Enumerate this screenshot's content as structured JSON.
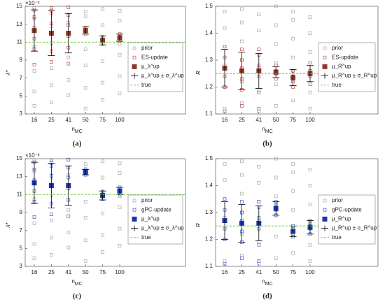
{
  "chart_data": [
    {
      "type": "scatter",
      "panel_label": "(a)",
      "y_label": "λ*",
      "y_multiplier": "×10⁻³",
      "x_label": "nMC",
      "categories": [
        "16",
        "25",
        "41",
        "50",
        "75",
        "100"
      ],
      "ylim": [
        3,
        15
      ],
      "yticks": [
        3,
        5,
        7,
        9,
        11,
        13,
        15
      ],
      "legend": "right",
      "series": [
        {
          "name": "prior",
          "role": "prior",
          "color": "#a6a6a6",
          "x": [
            "16",
            "16",
            "16",
            "16",
            "16",
            "16",
            "25",
            "25",
            "25",
            "25",
            "25",
            "25",
            "41",
            "41",
            "41",
            "41",
            "41",
            "41",
            "50",
            "50",
            "50",
            "50",
            "50",
            "50",
            "75",
            "75",
            "75",
            "75",
            "75",
            "75",
            "100",
            "100",
            "100",
            "100",
            "100",
            "100"
          ],
          "values": [
            3.9,
            5.5,
            7.8,
            10.5,
            13.6,
            14.8,
            4.3,
            6.2,
            8.1,
            10.9,
            12.8,
            14.6,
            5.1,
            6.8,
            9.3,
            11.7,
            13.2,
            14.9,
            3.6,
            5.9,
            8.4,
            10.2,
            13.9,
            14.4,
            4.6,
            6.5,
            8.9,
            11.4,
            12.9,
            14.7,
            5.3,
            7.2,
            9.6,
            10.8,
            13.4,
            14.5
          ]
        },
        {
          "name": "ES-update",
          "role": "update",
          "color": "#c0504d",
          "x": [
            "16",
            "16",
            "16",
            "16",
            "16",
            "16",
            "25",
            "25",
            "25",
            "25",
            "25",
            "25",
            "41",
            "41",
            "41",
            "41",
            "41",
            "41",
            "50",
            "50",
            "50",
            "50",
            "75",
            "75",
            "75",
            "75",
            "100",
            "100",
            "100",
            "100"
          ],
          "values": [
            8.5,
            10.2,
            11.4,
            12.6,
            13.8,
            14.6,
            8.8,
            10.0,
            11.9,
            13.1,
            14.2,
            14.8,
            8.6,
            10.4,
            11.7,
            12.9,
            14.0,
            14.9,
            11.9,
            12.2,
            12.4,
            12.6,
            10.8,
            11.1,
            11.3,
            11.6,
            11.1,
            11.4,
            11.6,
            11.9
          ]
        },
        {
          "name": "μ_λ^up",
          "role": "mean",
          "color": "#8b3a2a",
          "values": [
            12.3,
            12.0,
            12.0,
            12.3,
            11.2,
            11.5
          ]
        },
        {
          "name": "μ_λ^up ± σ_λ^up",
          "role": "error",
          "color": "#000000",
          "values": [
            12.3,
            12.0,
            12.0,
            12.3,
            11.2,
            11.5
          ],
          "errors": [
            2.3,
            2.5,
            2.2,
            0.4,
            0.5,
            0.4
          ]
        },
        {
          "name": "true",
          "role": "true",
          "color": "#66cc33",
          "value": 11
        }
      ]
    },
    {
      "type": "scatter",
      "panel_label": "(b)",
      "y_label": "R",
      "x_label": "nMC",
      "categories": [
        "16",
        "25",
        "41",
        "50",
        "75",
        "100"
      ],
      "ylim": [
        1.1,
        1.5
      ],
      "yticks": [
        1.1,
        1.2,
        1.3,
        1.4,
        1.5
      ],
      "legend": "right",
      "series": [
        {
          "name": "prior",
          "role": "prior",
          "color": "#a6a6a6",
          "x": [
            "16",
            "16",
            "16",
            "16",
            "16",
            "16",
            "25",
            "25",
            "25",
            "25",
            "25",
            "25",
            "41",
            "41",
            "41",
            "41",
            "41",
            "41",
            "50",
            "50",
            "50",
            "50",
            "50",
            "50",
            "75",
            "75",
            "75",
            "75",
            "75",
            "75",
            "100",
            "100",
            "100",
            "100",
            "100",
            "100"
          ],
          "values": [
            1.12,
            1.2,
            1.28,
            1.35,
            1.42,
            1.48,
            1.14,
            1.22,
            1.3,
            1.37,
            1.44,
            1.49,
            1.11,
            1.19,
            1.27,
            1.34,
            1.41,
            1.47,
            1.13,
            1.21,
            1.29,
            1.36,
            1.43,
            1.5,
            1.15,
            1.23,
            1.31,
            1.38,
            1.45,
            1.48,
            1.12,
            1.18,
            1.26,
            1.33,
            1.4,
            1.46
          ]
        },
        {
          "name": "ES-update",
          "role": "update",
          "color": "#c0504d",
          "x": [
            "16",
            "16",
            "16",
            "16",
            "16",
            "16",
            "25",
            "25",
            "25",
            "25",
            "25",
            "25",
            "41",
            "41",
            "41",
            "41",
            "41",
            "41",
            "50",
            "50",
            "50",
            "50",
            "75",
            "75",
            "75",
            "75",
            "100",
            "100",
            "100",
            "100"
          ],
          "values": [
            1.11,
            1.2,
            1.24,
            1.27,
            1.31,
            1.35,
            1.13,
            1.19,
            1.23,
            1.27,
            1.3,
            1.34,
            1.12,
            1.18,
            1.24,
            1.28,
            1.32,
            1.34,
            1.23,
            1.25,
            1.26,
            1.28,
            1.2,
            1.22,
            1.24,
            1.26,
            1.21,
            1.24,
            1.26,
            1.29
          ]
        },
        {
          "name": "μ_R^up",
          "role": "mean",
          "color": "#8b3a2a",
          "values": [
            1.27,
            1.26,
            1.26,
            1.255,
            1.235,
            1.25
          ]
        },
        {
          "name": "μ_R^up ± σ_R^up",
          "role": "error",
          "color": "#000000",
          "values": [
            1.27,
            1.26,
            1.26,
            1.255,
            1.235,
            1.25
          ],
          "errors": [
            0.07,
            0.07,
            0.065,
            0.02,
            0.03,
            0.03
          ]
        },
        {
          "name": "true",
          "role": "true",
          "color": "#66cc33",
          "value": 1.25
        }
      ]
    },
    {
      "type": "scatter",
      "panel_label": "(c)",
      "y_label": "λ*",
      "y_multiplier": "×10⁻³",
      "x_label": "nMC",
      "categories": [
        "16",
        "25",
        "41",
        "50",
        "75",
        "100"
      ],
      "ylim": [
        3,
        15
      ],
      "yticks": [
        3,
        5,
        7,
        9,
        11,
        13,
        15
      ],
      "legend": "right",
      "series": [
        {
          "name": "prior",
          "role": "prior",
          "color": "#a6a6a6",
          "x": [
            "16",
            "16",
            "16",
            "16",
            "16",
            "16",
            "25",
            "25",
            "25",
            "25",
            "25",
            "25",
            "41",
            "41",
            "41",
            "41",
            "41",
            "41",
            "50",
            "50",
            "50",
            "50",
            "50",
            "50",
            "75",
            "75",
            "75",
            "75",
            "75",
            "75",
            "100",
            "100",
            "100",
            "100",
            "100",
            "100"
          ],
          "values": [
            3.9,
            5.5,
            7.8,
            10.5,
            13.6,
            14.8,
            4.3,
            6.2,
            8.1,
            10.9,
            12.8,
            14.6,
            5.1,
            6.8,
            9.3,
            11.7,
            13.2,
            14.9,
            3.6,
            5.9,
            8.4,
            10.2,
            13.9,
            14.4,
            4.6,
            6.5,
            8.9,
            11.4,
            12.9,
            14.7,
            5.3,
            7.2,
            9.6,
            10.8,
            13.4,
            14.5
          ]
        },
        {
          "name": "gPC-update",
          "role": "update",
          "color": "#3f5fd0",
          "x": [
            "16",
            "16",
            "16",
            "16",
            "16",
            "16",
            "25",
            "25",
            "25",
            "25",
            "25",
            "25",
            "41",
            "41",
            "41",
            "41",
            "41",
            "41",
            "50",
            "50",
            "50",
            "50",
            "75",
            "75",
            "75",
            "75",
            "100",
            "100",
            "100",
            "100"
          ],
          "values": [
            8.5,
            10.2,
            11.4,
            12.6,
            13.8,
            14.6,
            8.8,
            10.0,
            11.9,
            13.1,
            14.2,
            14.8,
            8.6,
            10.4,
            11.7,
            12.9,
            14.0,
            14.9,
            13.2,
            13.4,
            13.6,
            13.8,
            10.5,
            10.8,
            11.0,
            11.3,
            11.0,
            11.3,
            11.5,
            11.8
          ]
        },
        {
          "name": "μ_λ^up",
          "role": "mean",
          "color": "#1a35b0",
          "values": [
            12.3,
            12.0,
            12.0,
            13.5,
            10.9,
            11.4
          ]
        },
        {
          "name": "μ_λ^up ± σ_λ^up",
          "role": "error",
          "color": "#000000",
          "values": [
            12.3,
            12.0,
            12.0,
            13.5,
            10.9,
            11.4
          ],
          "errors": [
            2.3,
            2.5,
            2.2,
            0.3,
            0.5,
            0.4
          ]
        },
        {
          "name": "true",
          "role": "true",
          "color": "#66cc33",
          "value": 11
        }
      ]
    },
    {
      "type": "scatter",
      "panel_label": "(d)",
      "y_label": "R",
      "x_label": "nMC",
      "categories": [
        "16",
        "25",
        "41",
        "50",
        "75",
        "100"
      ],
      "ylim": [
        1.1,
        1.5
      ],
      "yticks": [
        1.1,
        1.2,
        1.3,
        1.4,
        1.5
      ],
      "legend": "right",
      "series": [
        {
          "name": "prior",
          "role": "prior",
          "color": "#a6a6a6",
          "x": [
            "16",
            "16",
            "16",
            "16",
            "16",
            "16",
            "25",
            "25",
            "25",
            "25",
            "25",
            "25",
            "41",
            "41",
            "41",
            "41",
            "41",
            "41",
            "50",
            "50",
            "50",
            "50",
            "50",
            "50",
            "75",
            "75",
            "75",
            "75",
            "75",
            "75",
            "100",
            "100",
            "100",
            "100",
            "100",
            "100"
          ],
          "values": [
            1.12,
            1.2,
            1.28,
            1.35,
            1.42,
            1.48,
            1.14,
            1.22,
            1.3,
            1.37,
            1.44,
            1.49,
            1.11,
            1.19,
            1.27,
            1.34,
            1.41,
            1.47,
            1.13,
            1.21,
            1.29,
            1.36,
            1.43,
            1.5,
            1.15,
            1.23,
            1.31,
            1.38,
            1.45,
            1.48,
            1.12,
            1.18,
            1.26,
            1.33,
            1.4,
            1.46
          ]
        },
        {
          "name": "gPC-update",
          "role": "update",
          "color": "#3f5fd0",
          "x": [
            "16",
            "16",
            "16",
            "16",
            "16",
            "16",
            "25",
            "25",
            "25",
            "25",
            "25",
            "25",
            "41",
            "41",
            "41",
            "41",
            "41",
            "41",
            "50",
            "50",
            "50",
            "50",
            "75",
            "75",
            "75",
            "75",
            "100",
            "100",
            "100",
            "100"
          ],
          "values": [
            1.11,
            1.2,
            1.24,
            1.27,
            1.31,
            1.35,
            1.13,
            1.19,
            1.23,
            1.27,
            1.3,
            1.34,
            1.12,
            1.18,
            1.24,
            1.28,
            1.32,
            1.34,
            1.29,
            1.31,
            1.33,
            1.34,
            1.21,
            1.22,
            1.24,
            1.25,
            1.22,
            1.24,
            1.26,
            1.27
          ]
        },
        {
          "name": "μ_R^up",
          "role": "mean",
          "color": "#1a35b0",
          "values": [
            1.27,
            1.26,
            1.26,
            1.315,
            1.23,
            1.245
          ]
        },
        {
          "name": "μ_R^up ± σ_R^up",
          "role": "error",
          "color": "#000000",
          "values": [
            1.27,
            1.26,
            1.26,
            1.315,
            1.23,
            1.245
          ],
          "errors": [
            0.07,
            0.07,
            0.065,
            0.025,
            0.02,
            0.025
          ]
        },
        {
          "name": "true",
          "role": "true",
          "color": "#66cc33",
          "value": 1.25
        }
      ]
    }
  ]
}
